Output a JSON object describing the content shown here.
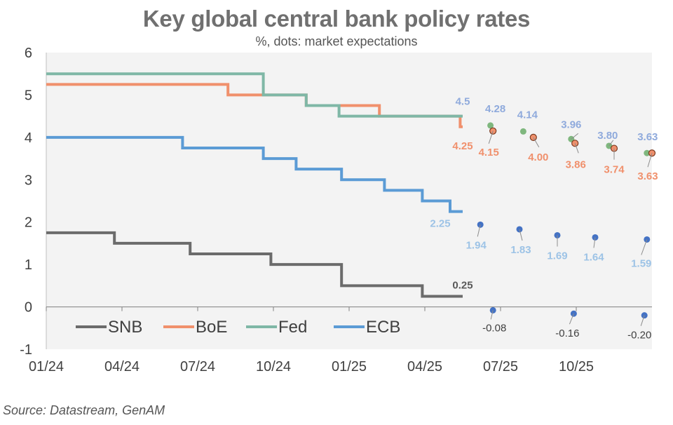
{
  "title": "Key global central bank policy rates",
  "subtitle": "%, dots: market expectations",
  "source": "Source: Datastream, GenAM",
  "chart_data": {
    "type": "line",
    "title": "Key global central bank policy rates",
    "subtitle": "%, dots: market expectations",
    "ylim": [
      -1,
      6
    ],
    "y_ticks": [
      -1,
      0,
      1,
      2,
      3,
      4,
      5,
      6
    ],
    "x_range": [
      0,
      24
    ],
    "x_ticks": [
      {
        "x": 0,
        "label": "01/24"
      },
      {
        "x": 3,
        "label": "04/24"
      },
      {
        "x": 6,
        "label": "07/24"
      },
      {
        "x": 9,
        "label": "10/24"
      },
      {
        "x": 12,
        "label": "01/25"
      },
      {
        "x": 15,
        "label": "04/25"
      },
      {
        "x": 18,
        "label": "07/25"
      },
      {
        "x": 21,
        "label": "10/25"
      }
    ],
    "legend": [
      "SNB",
      "BoE",
      "Fed",
      "ECB"
    ],
    "series": [
      {
        "name": "SNB",
        "color": "#6b6b6b",
        "steps": [
          [
            0,
            1.75
          ],
          [
            2.7,
            1.5
          ],
          [
            5.7,
            1.25
          ],
          [
            8.9,
            1.0
          ],
          [
            11.7,
            0.5
          ],
          [
            14.9,
            0.25
          ],
          [
            16.5,
            0.25
          ]
        ],
        "end_label": "0.25",
        "expectations": [
          [
            17.7,
            -0.08
          ],
          [
            20.9,
            -0.16
          ],
          [
            23.7,
            -0.2
          ]
        ],
        "expectation_labels": [
          "-0.08",
          "-0.16",
          "-0.20"
        ]
      },
      {
        "name": "BoE",
        "color": "#f0906c",
        "steps": [
          [
            0,
            5.25
          ],
          [
            7.2,
            5.0
          ],
          [
            10.3,
            4.75
          ],
          [
            13.2,
            4.5
          ],
          [
            16.4,
            4.25
          ],
          [
            16.5,
            4.25
          ]
        ],
        "end_label": "4.25",
        "expectations": [
          [
            17.7,
            4.15
          ],
          [
            19.3,
            4.0
          ],
          [
            20.95,
            3.86
          ],
          [
            22.5,
            3.74
          ],
          [
            24.0,
            3.63
          ]
        ],
        "expectation_labels": [
          "4.15",
          "4.00",
          "3.86",
          "3.74",
          "3.63"
        ]
      },
      {
        "name": "Fed",
        "color": "#7fb7a6",
        "steps": [
          [
            0,
            5.5
          ],
          [
            8.6,
            5.0
          ],
          [
            10.3,
            4.75
          ],
          [
            11.6,
            4.5
          ],
          [
            16.5,
            4.5
          ]
        ],
        "end_label": "4.5",
        "expectations": [
          [
            17.6,
            4.28
          ],
          [
            18.9,
            4.14
          ],
          [
            20.8,
            3.96
          ],
          [
            22.3,
            3.8
          ],
          [
            23.8,
            3.63
          ]
        ],
        "expectation_labels": [
          "4.28",
          "4.14",
          "3.96",
          "3.80",
          "3.63"
        ]
      },
      {
        "name": "ECB",
        "color": "#5b9bd5",
        "steps": [
          [
            0,
            4.0
          ],
          [
            5.4,
            3.75
          ],
          [
            8.6,
            3.5
          ],
          [
            9.9,
            3.25
          ],
          [
            11.7,
            3.0
          ],
          [
            13.4,
            2.75
          ],
          [
            14.9,
            2.5
          ],
          [
            16.0,
            2.25
          ],
          [
            16.5,
            2.25
          ]
        ],
        "end_label": "2.25",
        "expectations": [
          [
            17.2,
            1.94
          ],
          [
            18.75,
            1.83
          ],
          [
            20.25,
            1.69
          ],
          [
            21.75,
            1.64
          ],
          [
            23.8,
            1.59
          ]
        ],
        "expectation_labels": [
          "1.94",
          "1.83",
          "1.69",
          "1.64",
          "1.59"
        ]
      }
    ]
  },
  "label_colors": {
    "snb_end": "#595959",
    "neg": "#404040",
    "boe": "#f0906c",
    "fed": "#8faadc",
    "ecb": "#9dc3e6"
  },
  "dot_colors": {
    "snb": "#4472c4",
    "boe": "#f0906c",
    "boe_outline": "#7a3a20",
    "fed": "#7fb77e",
    "ecb": "#4472c4"
  }
}
